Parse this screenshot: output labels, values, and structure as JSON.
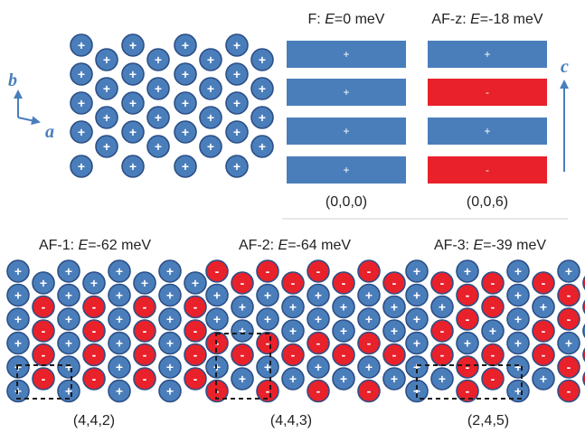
{
  "colors": {
    "plus": "#4a7ebb",
    "minus": "#e8212a",
    "outline": "#2c4f86",
    "axis": "#4a7ebb",
    "divider": "#d0d0d0",
    "dashed": "#1a1a1a",
    "text": "#222222"
  },
  "axes": {
    "a": "a",
    "b": "b",
    "c": "c"
  },
  "signs": {
    "plus": "+",
    "minus": "-"
  },
  "top_lattice": {
    "rows": [
      "+ + + + + + + +",
      "+ + + + + + + +",
      "+ + + + + + + +",
      "+ + + + + + + +",
      "+ + + + + + + +"
    ]
  },
  "bar_panels": [
    {
      "id": "F",
      "name": "F: ",
      "energy_var": "E",
      "energy_val": "=0 meV",
      "bars": [
        "+",
        "+",
        "+",
        "+"
      ],
      "vector": "(0,0,0)"
    },
    {
      "id": "AF-z",
      "name": "AF-z: ",
      "energy_var": "E",
      "energy_val": "=-18 meV",
      "bars": [
        "+",
        "-",
        "+",
        "-"
      ],
      "vector": "(0,0,6)"
    }
  ],
  "lattice_panels": [
    {
      "id": "AF-1",
      "name": "AF-1: ",
      "energy_var": "E",
      "energy_val": "=-62 meV",
      "vector": "(4,4,2)",
      "rows": [
        [
          "+",
          "+",
          "+",
          "+",
          "+",
          "+",
          "+",
          "+"
        ],
        [
          "+",
          "-",
          "+",
          "-",
          "+",
          "-",
          "+",
          "-"
        ],
        [
          "+",
          "-",
          "+",
          "-",
          "+",
          "-",
          "+",
          "-"
        ],
        [
          "+",
          "-",
          "+",
          "-",
          "+",
          "-",
          "+",
          "-"
        ],
        [
          "+",
          "-",
          "+",
          "-",
          "+",
          "-",
          "+",
          "-"
        ],
        [
          "+",
          "-",
          "+",
          "-",
          "+",
          "-",
          "+",
          "+"
        ]
      ]
    },
    {
      "id": "AF-2",
      "name": "AF-2: ",
      "energy_var": "E",
      "energy_val": "=-64 meV",
      "vector": "(4,4,3)",
      "rows": [
        [
          "-",
          "-",
          "-",
          "-",
          "-",
          "-",
          "-",
          "-"
        ],
        [
          "+",
          "+",
          "+",
          "+",
          "+",
          "+",
          "+",
          "+"
        ],
        [
          "+",
          "+",
          "+",
          "+",
          "+",
          "+",
          "+",
          "+"
        ],
        [
          "-",
          "-",
          "-",
          "-",
          "-",
          "-",
          "-",
          "-"
        ],
        [
          "+",
          "+",
          "+",
          "+",
          "+",
          "+",
          "+",
          "+"
        ],
        [
          "-",
          "-",
          "-",
          "-",
          "-",
          "-",
          "-",
          "-"
        ]
      ]
    },
    {
      "id": "AF-3",
      "name": "AF-3: ",
      "energy_var": "E",
      "energy_val": "=-39 meV",
      "vector": "(2,4,5)",
      "rows": [
        [
          "+",
          "-",
          "+",
          "-",
          "+",
          "-",
          "+",
          "-"
        ],
        [
          "+",
          "+",
          "-",
          "-",
          "+",
          "+",
          "-",
          "-"
        ],
        [
          "+",
          "-",
          "-",
          "+",
          "+",
          "-",
          "-",
          "+"
        ],
        [
          "+",
          "-",
          "+",
          "-",
          "+",
          "-",
          "+",
          "-"
        ],
        [
          "+",
          "+",
          "-",
          "-",
          "+",
          "+",
          "-",
          "-"
        ],
        [
          "+",
          "-",
          "-",
          "+",
          "+",
          "-",
          "-",
          "-"
        ]
      ]
    }
  ]
}
